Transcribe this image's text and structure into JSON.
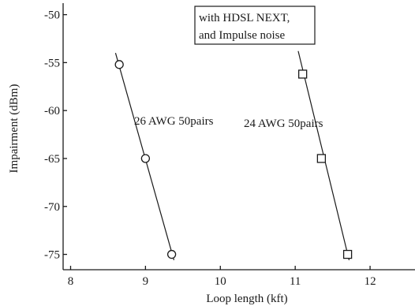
{
  "chart_data": {
    "type": "scatter",
    "xlabel": "Loop length (kft)",
    "ylabel": "Impairment (dBm)",
    "xlim": [
      7.9,
      12.6
    ],
    "ylim": [
      -76.6,
      -48.8
    ],
    "x_ticks": [
      8,
      9,
      10,
      11,
      12
    ],
    "y_ticks": [
      -50,
      -55,
      -60,
      -65,
      -70,
      -75
    ],
    "x_tick_labels": [
      "8",
      "9",
      "10",
      "11",
      "12"
    ],
    "y_tick_labels": [
      "-50",
      "-55",
      "-60",
      "-65",
      "-70",
      "-75"
    ],
    "legend": {
      "lines": [
        "with HDSL NEXT,",
        "and Impulse noise"
      ],
      "placement": "top-center"
    },
    "series": [
      {
        "name": "26 AWG 50pairs",
        "marker": "circle",
        "points": [
          {
            "x": 8.65,
            "y": -55.2
          },
          {
            "x": 9.0,
            "y": -65.0
          },
          {
            "x": 9.35,
            "y": -75.0
          }
        ],
        "fit_line": [
          {
            "x": 8.6,
            "y": -54.0
          },
          {
            "x": 9.38,
            "y": -75.6
          }
        ]
      },
      {
        "name": "24 AWG 50pairs",
        "marker": "square",
        "points": [
          {
            "x": 11.1,
            "y": -56.2
          },
          {
            "x": 11.35,
            "y": -65.0
          },
          {
            "x": 11.7,
            "y": -75.0
          }
        ],
        "fit_line": [
          {
            "x": 11.04,
            "y": -53.8
          },
          {
            "x": 11.72,
            "y": -75.6
          }
        ]
      }
    ]
  }
}
